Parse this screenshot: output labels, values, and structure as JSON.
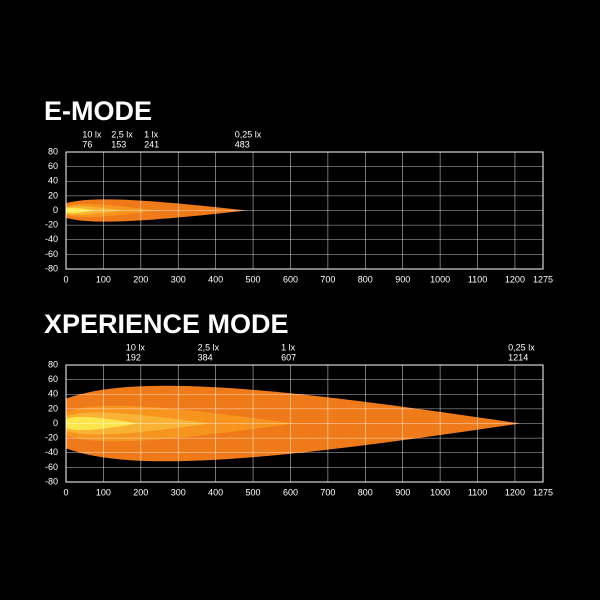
{
  "chart_data": [
    {
      "type": "beam",
      "title": "E-MODE",
      "xlim": [
        0,
        1275
      ],
      "ylim": [
        -80,
        80
      ],
      "xticks": [
        0,
        100,
        200,
        300,
        400,
        500,
        600,
        700,
        800,
        900,
        1000,
        1100,
        1200,
        1275
      ],
      "yticks": [
        -80,
        -60,
        -40,
        -20,
        0,
        20,
        40,
        60,
        80
      ],
      "series": [
        {
          "name": "10 lx",
          "color": "#fde64b",
          "distance": 76
        },
        {
          "name": "2,5 lx",
          "color": "#f9b233",
          "distance": 153
        },
        {
          "name": "1 lx",
          "color": "#f7941d",
          "distance": 241
        },
        {
          "name": "0,25 lx",
          "color": "#ef7a1a",
          "distance": 483
        }
      ]
    },
    {
      "type": "beam",
      "title": "XPERIENCE MODE",
      "xlim": [
        0,
        1275
      ],
      "ylim": [
        -80,
        80
      ],
      "xticks": [
        0,
        100,
        200,
        300,
        400,
        500,
        600,
        700,
        800,
        900,
        1000,
        1100,
        1200,
        1275
      ],
      "yticks": [
        -80,
        -60,
        -40,
        -20,
        0,
        20,
        40,
        60,
        80
      ],
      "series": [
        {
          "name": "10 lx",
          "color": "#fde64b",
          "distance": 192
        },
        {
          "name": "2,5 lx",
          "color": "#f9b233",
          "distance": 384
        },
        {
          "name": "1 lx",
          "color": "#f7941d",
          "distance": 607
        },
        {
          "name": "0,25 lx",
          "color": "#ef7a1a",
          "distance": 1214
        }
      ]
    }
  ]
}
